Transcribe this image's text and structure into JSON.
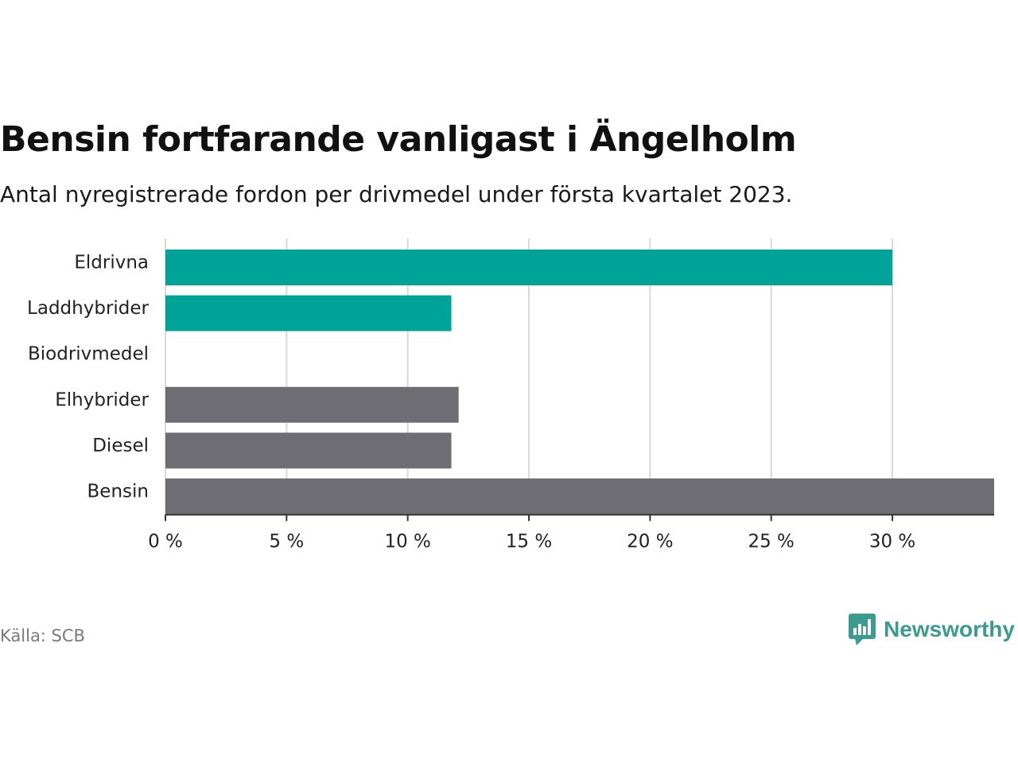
{
  "title": "Bensin fortfarande vanligast i Ängelholm",
  "subtitle": "Antal nyregistrerade fordon per drivmedel under första kvartalet 2023.",
  "source": "Källa: SCB",
  "brand": {
    "name": "Newsworthy",
    "icon": "newsworthy-logo-icon",
    "color": "#3a9c8f"
  },
  "colors": {
    "highlight": "#00a398",
    "default": "#6e6d74",
    "grid": "#d9d9d9",
    "axis": "#333333"
  },
  "chart_data": {
    "type": "bar",
    "orientation": "horizontal",
    "categories": [
      "Eldrivna",
      "Laddhybrider",
      "Biodrivmedel",
      "Elhybrider",
      "Diesel",
      "Bensin"
    ],
    "values": [
      30.0,
      11.8,
      0.0,
      12.1,
      11.8,
      34.2
    ],
    "highlighted": [
      true,
      true,
      true,
      false,
      false,
      false
    ],
    "x_ticks": [
      0,
      5,
      10,
      15,
      20,
      25,
      30
    ],
    "x_tick_labels": [
      "0 %",
      "5 %",
      "10 %",
      "15 %",
      "20 %",
      "25 %",
      "30 %"
    ],
    "xlim": [
      0,
      34.2
    ],
    "grid": true,
    "xlabel": "",
    "ylabel": ""
  }
}
